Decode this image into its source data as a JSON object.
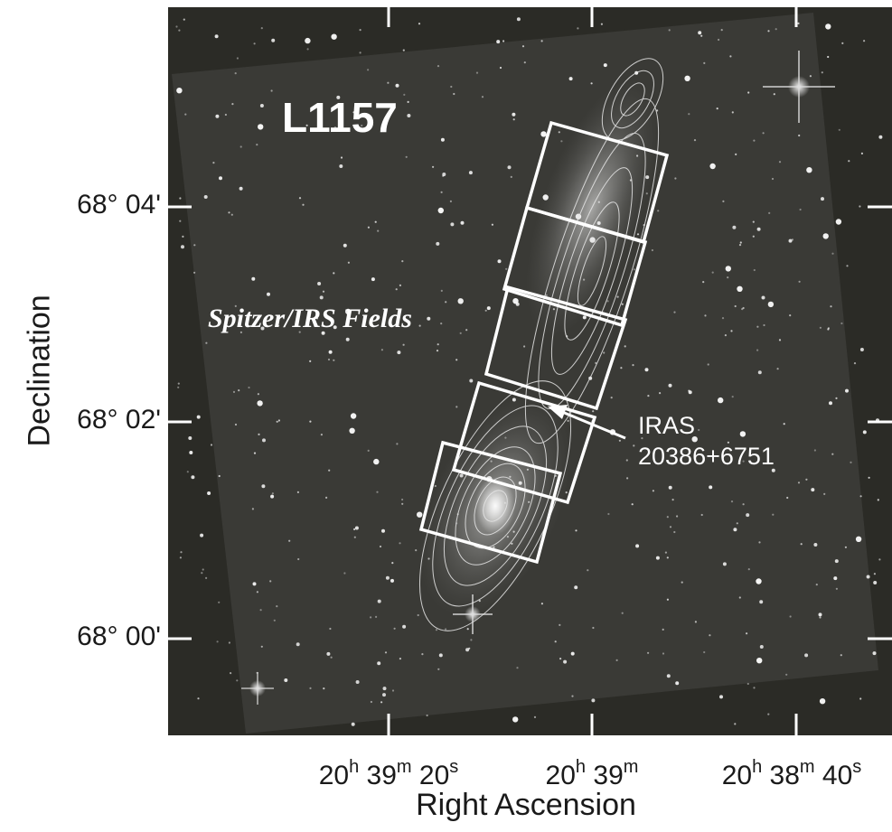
{
  "figure": {
    "object_label": "L1157",
    "fields_label": "Spitzer/IRS Fields",
    "source_label_line1": "IRAS",
    "source_label_line2": "20386+6751",
    "x_axis_title": "Right Ascension",
    "y_axis_title": "Declination",
    "y_ticks": [
      {
        "deg": "68°",
        "min": "04'"
      },
      {
        "deg": "68°",
        "min": "02'"
      },
      {
        "deg": "68°",
        "min": "00'"
      }
    ],
    "x_ticks": [
      {
        "h": "20",
        "hu": "h",
        "m": "39",
        "mu": "m",
        "s": "20",
        "su": "s"
      },
      {
        "h": "20",
        "hu": "h",
        "m": "39",
        "mu": "m"
      },
      {
        "h": "20",
        "hu": "h",
        "m": "38",
        "mu": "m",
        "s": "40",
        "su": "s"
      }
    ],
    "colors": {
      "background": "#2b2b26",
      "overlay": "#ffffff",
      "text": "#1a1a1a"
    }
  }
}
